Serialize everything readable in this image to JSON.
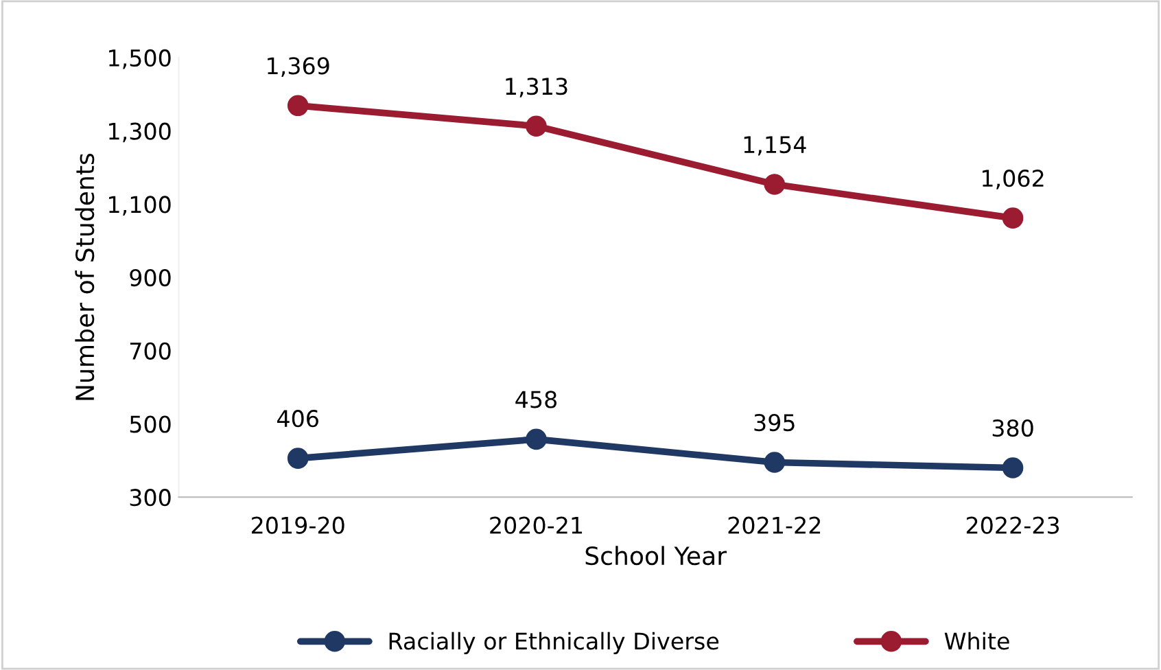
{
  "chart_data": {
    "type": "line",
    "xlabel": "School Year",
    "ylabel": "Number of Students",
    "categories": [
      "2019-20",
      "2020-21",
      "2021-22",
      "2022-23"
    ],
    "series": [
      {
        "name": "Racially or Ethnically Diverse",
        "color": "#1f3864",
        "values": [
          406,
          458,
          395,
          380
        ],
        "value_labels": [
          "406",
          "458",
          "395",
          "380"
        ]
      },
      {
        "name": "White",
        "color": "#9b1b30",
        "values": [
          1369,
          1313,
          1154,
          1062
        ],
        "value_labels": [
          "1,369",
          "1,313",
          "1,154",
          "1,062"
        ]
      }
    ],
    "ylim": [
      300,
      1500
    ],
    "yticks": [
      {
        "value": 300,
        "label": "300"
      },
      {
        "value": 500,
        "label": "500"
      },
      {
        "value": 700,
        "label": "700"
      },
      {
        "value": 900,
        "label": "900"
      },
      {
        "value": 1100,
        "label": "1,100"
      },
      {
        "value": 1300,
        "label": "1,300"
      },
      {
        "value": 1500,
        "label": "1,500"
      }
    ],
    "grid": false,
    "legend": "bottom",
    "marker": "circle",
    "line_style": "solid"
  }
}
